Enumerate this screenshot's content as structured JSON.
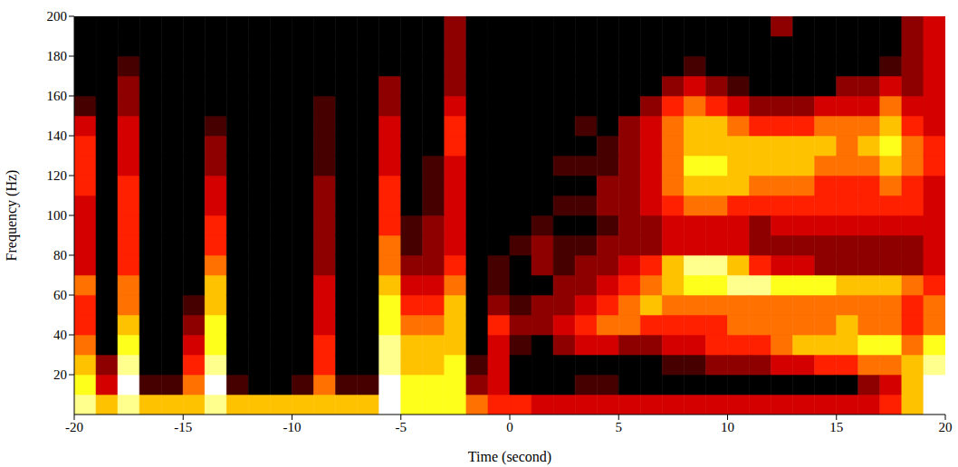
{
  "chart_data": {
    "type": "heatmap",
    "x_label": "Time (second)",
    "y_label": "Frequency (Hz)",
    "xlim": [
      -20,
      20
    ],
    "xticks": [
      -20,
      -15,
      -10,
      -5,
      0,
      5,
      10,
      15,
      20
    ],
    "ylim": [
      0,
      200
    ],
    "yticks": [
      20,
      40,
      60,
      80,
      100,
      120,
      140,
      160,
      180,
      200
    ],
    "time_bins": [
      -20,
      -19,
      -18,
      -17,
      -16,
      -15,
      -14,
      -13,
      -12,
      -11,
      -10,
      -9,
      -8,
      -7,
      -6,
      -5,
      -4,
      -3,
      -2,
      -1,
      0,
      1,
      2,
      3,
      4,
      5,
      6,
      7,
      8,
      9,
      10,
      11,
      12,
      13,
      14,
      15,
      16,
      17,
      18,
      19,
      20
    ],
    "freq_bins": [
      0,
      10,
      20,
      30,
      40,
      50,
      60,
      70,
      80,
      90,
      100,
      110,
      120,
      130,
      140,
      150,
      160,
      170,
      180,
      190,
      200
    ],
    "cells": [
      [
        8,
        7,
        6,
        5,
        4,
        4,
        5,
        3,
        3,
        3,
        3,
        4,
        4,
        4,
        3,
        1,
        0,
        0,
        0,
        0
      ],
      [
        6,
        3,
        2,
        0,
        0,
        0,
        0,
        0,
        0,
        0,
        0,
        0,
        0,
        0,
        0,
        0,
        0,
        0,
        0,
        0
      ],
      [
        8,
        9,
        8,
        7,
        6,
        5,
        5,
        4,
        4,
        4,
        4,
        4,
        3,
        3,
        3,
        2,
        2,
        1,
        0,
        0
      ],
      [
        6,
        1,
        0,
        0,
        0,
        0,
        0,
        0,
        0,
        0,
        0,
        0,
        0,
        0,
        0,
        0,
        0,
        0,
        0,
        0
      ],
      [
        6,
        1,
        0,
        0,
        0,
        0,
        0,
        0,
        0,
        0,
        0,
        0,
        0,
        0,
        0,
        0,
        0,
        0,
        0,
        0
      ],
      [
        6,
        5,
        4,
        3,
        2,
        1,
        0,
        0,
        0,
        0,
        0,
        0,
        0,
        0,
        0,
        0,
        0,
        0,
        0,
        0
      ],
      [
        8,
        9,
        8,
        7,
        7,
        6,
        6,
        5,
        4,
        4,
        3,
        3,
        2,
        2,
        1,
        0,
        0,
        0,
        0,
        0
      ],
      [
        6,
        1,
        0,
        0,
        0,
        0,
        0,
        0,
        0,
        0,
        0,
        0,
        0,
        0,
        0,
        0,
        0,
        0,
        0,
        0
      ],
      [
        6,
        0,
        0,
        0,
        0,
        0,
        0,
        0,
        0,
        0,
        0,
        0,
        0,
        0,
        0,
        0,
        0,
        0,
        0,
        0
      ],
      [
        6,
        0,
        0,
        0,
        0,
        0,
        0,
        0,
        0,
        0,
        0,
        0,
        0,
        0,
        0,
        0,
        0,
        0,
        0,
        0
      ],
      [
        6,
        1,
        0,
        0,
        0,
        0,
        0,
        0,
        0,
        0,
        0,
        0,
        0,
        0,
        0,
        0,
        0,
        0,
        0,
        0
      ],
      [
        6,
        5,
        4,
        4,
        3,
        3,
        3,
        2,
        2,
        2,
        2,
        2,
        1,
        1,
        1,
        1,
        0,
        0,
        0,
        0
      ],
      [
        6,
        1,
        0,
        0,
        0,
        0,
        0,
        0,
        0,
        0,
        0,
        0,
        0,
        0,
        0,
        0,
        0,
        0,
        0,
        0
      ],
      [
        6,
        1,
        0,
        0,
        0,
        0,
        0,
        0,
        0,
        0,
        0,
        0,
        0,
        0,
        0,
        0,
        0,
        0,
        0,
        0
      ],
      [
        9,
        9,
        8,
        8,
        7,
        7,
        6,
        5,
        5,
        4,
        4,
        4,
        3,
        3,
        3,
        2,
        2,
        0,
        0,
        0
      ],
      [
        7,
        7,
        6,
        6,
        5,
        4,
        3,
        2,
        1,
        1,
        0,
        0,
        0,
        0,
        0,
        0,
        0,
        0,
        0,
        0
      ],
      [
        7,
        7,
        6,
        6,
        5,
        4,
        3,
        2,
        2,
        2,
        1,
        1,
        1,
        0,
        0,
        0,
        0,
        0,
        0,
        0
      ],
      [
        7,
        7,
        7,
        6,
        6,
        6,
        5,
        4,
        3,
        3,
        3,
        3,
        3,
        4,
        4,
        3,
        2,
        2,
        2,
        2
      ],
      [
        5,
        2,
        1,
        0,
        0,
        0,
        0,
        0,
        0,
        0,
        0,
        0,
        0,
        0,
        0,
        0,
        0,
        0,
        0,
        0
      ],
      [
        4,
        3,
        3,
        3,
        4,
        2,
        1,
        1,
        0,
        0,
        0,
        0,
        0,
        0,
        0,
        0,
        0,
        0,
        0,
        0
      ],
      [
        4,
        0,
        0,
        1,
        2,
        1,
        0,
        0,
        1,
        0,
        0,
        0,
        0,
        0,
        0,
        0,
        0,
        0,
        0,
        0
      ],
      [
        3,
        0,
        0,
        0,
        2,
        2,
        0,
        2,
        2,
        1,
        0,
        0,
        0,
        0,
        0,
        0,
        0,
        0,
        0,
        0
      ],
      [
        3,
        0,
        0,
        2,
        3,
        2,
        2,
        1,
        1,
        0,
        1,
        0,
        1,
        0,
        0,
        0,
        0,
        0,
        0,
        0
      ],
      [
        3,
        1,
        0,
        3,
        4,
        3,
        2,
        2,
        1,
        0,
        1,
        0,
        1,
        0,
        1,
        0,
        0,
        0,
        0,
        0
      ],
      [
        3,
        1,
        0,
        3,
        5,
        4,
        3,
        2,
        2,
        1,
        2,
        2,
        1,
        1,
        0,
        0,
        0,
        0,
        0,
        0
      ],
      [
        3,
        0,
        0,
        2,
        5,
        5,
        4,
        3,
        2,
        2,
        2,
        2,
        2,
        2,
        2,
        0,
        0,
        0,
        0,
        0
      ],
      [
        3,
        0,
        0,
        2,
        4,
        6,
        5,
        4,
        2,
        2,
        3,
        3,
        3,
        3,
        3,
        2,
        0,
        0,
        0,
        0
      ],
      [
        3,
        0,
        1,
        3,
        4,
        5,
        6,
        6,
        3,
        3,
        4,
        5,
        5,
        5,
        5,
        4,
        2,
        0,
        0,
        0
      ],
      [
        3,
        0,
        1,
        3,
        4,
        5,
        7,
        8,
        3,
        3,
        5,
        6,
        7,
        6,
        6,
        5,
        3,
        1,
        0,
        0
      ],
      [
        3,
        0,
        2,
        4,
        4,
        5,
        7,
        8,
        3,
        3,
        5,
        6,
        7,
        6,
        6,
        4,
        2,
        0,
        0,
        0
      ],
      [
        3,
        0,
        2,
        4,
        5,
        5,
        8,
        6,
        3,
        3,
        4,
        6,
        6,
        6,
        5,
        3,
        1,
        0,
        0,
        0
      ],
      [
        3,
        0,
        2,
        4,
        5,
        5,
        8,
        4,
        2,
        2,
        4,
        5,
        6,
        6,
        4,
        2,
        0,
        0,
        0,
        0
      ],
      [
        3,
        0,
        3,
        5,
        5,
        5,
        7,
        3,
        2,
        3,
        4,
        5,
        6,
        6,
        4,
        2,
        0,
        0,
        0,
        2
      ],
      [
        3,
        0,
        3,
        6,
        5,
        5,
        7,
        3,
        2,
        3,
        4,
        5,
        6,
        6,
        4,
        2,
        0,
        0,
        0,
        0
      ],
      [
        3,
        0,
        4,
        6,
        5,
        5,
        7,
        2,
        2,
        3,
        4,
        4,
        5,
        6,
        5,
        3,
        0,
        0,
        0,
        0
      ],
      [
        3,
        0,
        4,
        6,
        6,
        5,
        6,
        2,
        2,
        3,
        4,
        4,
        5,
        5,
        5,
        3,
        2,
        0,
        0,
        0
      ],
      [
        3,
        2,
        5,
        7,
        5,
        5,
        6,
        2,
        2,
        3,
        4,
        4,
        5,
        6,
        5,
        3,
        2,
        0,
        0,
        0
      ],
      [
        4,
        3,
        5,
        7,
        5,
        5,
        6,
        2,
        2,
        3,
        4,
        5,
        6,
        7,
        6,
        5,
        3,
        1,
        0,
        0
      ],
      [
        6,
        6,
        6,
        5,
        4,
        4,
        5,
        2,
        2,
        3,
        4,
        4,
        5,
        5,
        4,
        3,
        2,
        2,
        2,
        2
      ],
      [
        9,
        9,
        8,
        7,
        5,
        5,
        4,
        3,
        3,
        3,
        3,
        3,
        4,
        4,
        3,
        3,
        3,
        3,
        3,
        3
      ]
    ]
  }
}
